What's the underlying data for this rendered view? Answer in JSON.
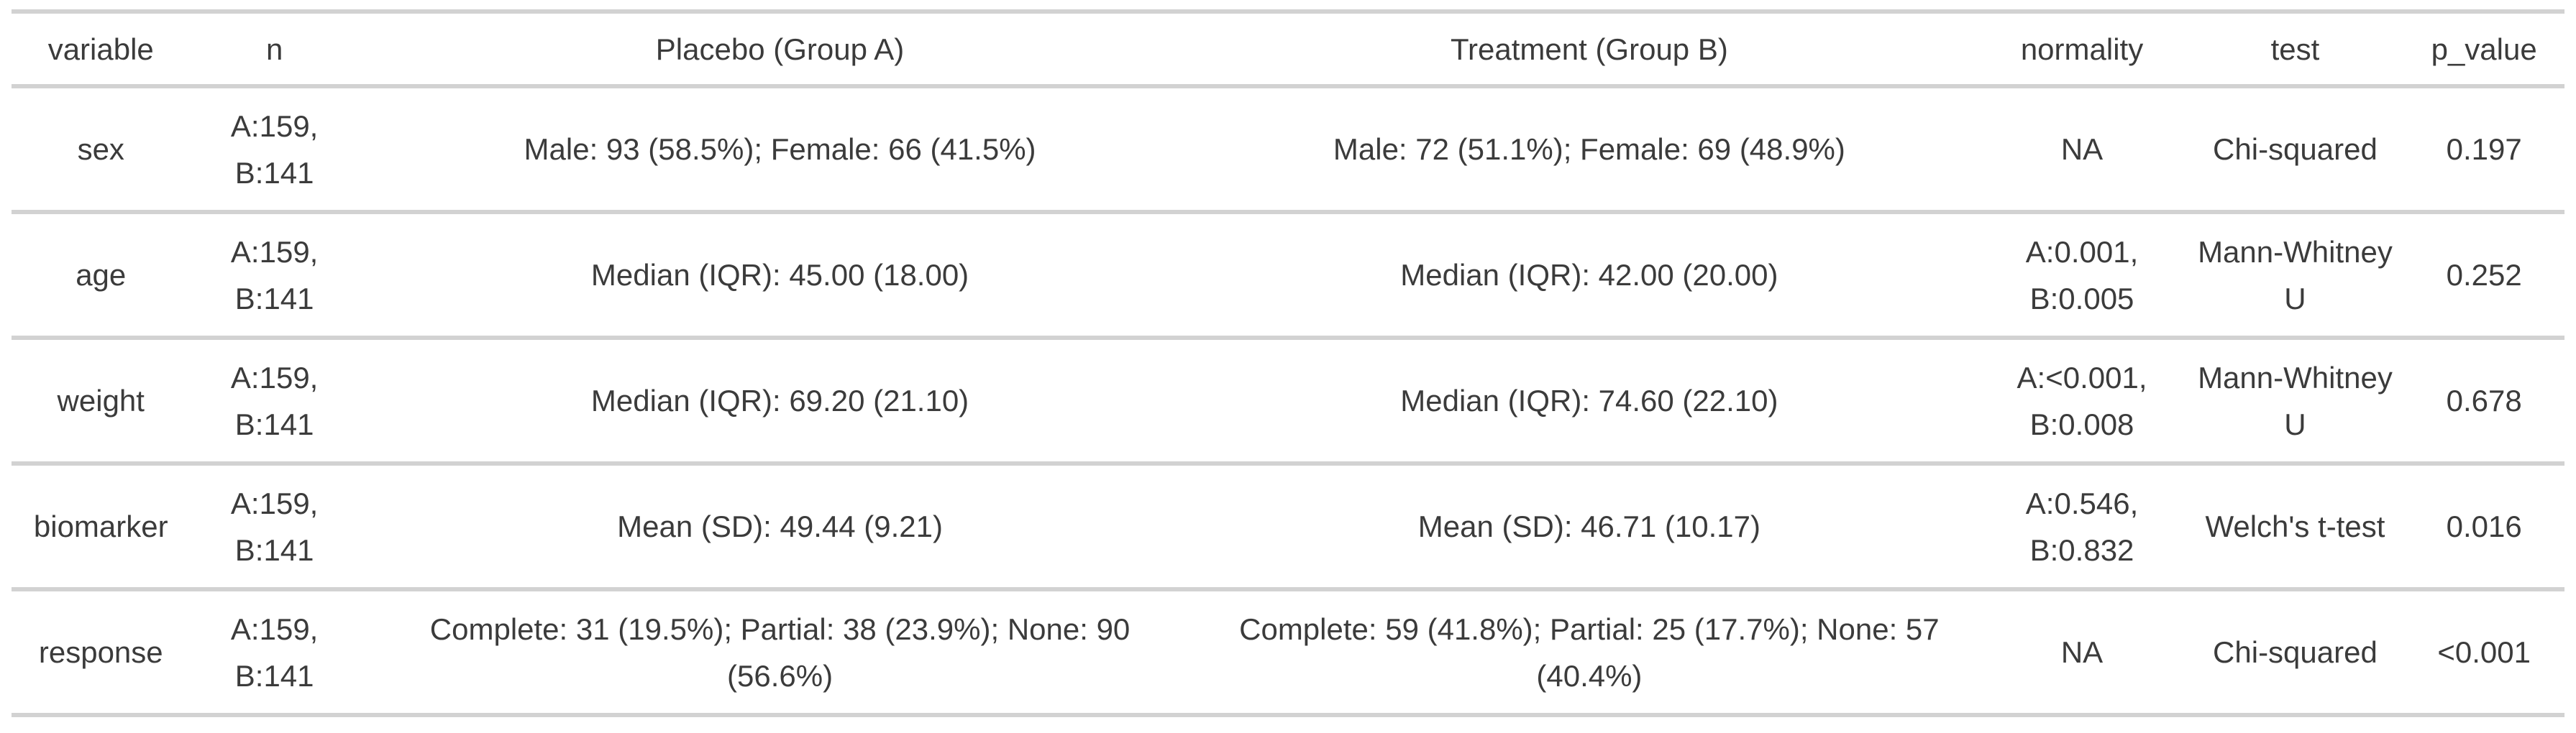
{
  "colors": {
    "background": "#ffffff",
    "row_border": "#d2d2d2",
    "text": "#3b3b3b"
  },
  "chart_data": {
    "type": "table",
    "title": "",
    "layout": {
      "gridlines": "horizontal row separators only",
      "cell_alignment": "center",
      "header_position": "top"
    },
    "columns": [
      "variable",
      "n",
      "Placebo (Group A)",
      "Treatment (Group B)",
      "normality",
      "test",
      "p_value"
    ],
    "rows": [
      [
        "sex",
        "A:159, B:141",
        "Male: 93 (58.5%); Female: 66 (41.5%)",
        "Male: 72 (51.1%); Female: 69 (48.9%)",
        "NA",
        "Chi-squared",
        "0.197"
      ],
      [
        "age",
        "A:159, B:141",
        "Median (IQR): 45.00 (18.00)",
        "Median (IQR): 42.00 (20.00)",
        "A:0.001, B:0.005",
        "Mann-Whitney U",
        "0.252"
      ],
      [
        "weight",
        "A:159, B:141",
        "Median (IQR): 69.20 (21.10)",
        "Median (IQR): 74.60 (22.10)",
        "A:<0.001, B:0.008",
        "Mann-Whitney U",
        "0.678"
      ],
      [
        "biomarker",
        "A:159, B:141",
        "Mean (SD): 49.44 (9.21)",
        "Mean (SD): 46.71 (10.17)",
        "A:0.546, B:0.832",
        "Welch's t-test",
        "0.016"
      ],
      [
        "response",
        "A:159, B:141",
        "Complete: 31 (19.5%); Partial: 38 (23.9%); None: 90 (56.6%)",
        "Complete: 59 (41.8%); Partial: 25 (17.7%); None: 57 (40.4%)",
        "NA",
        "Chi-squared",
        "<0.001"
      ]
    ]
  }
}
